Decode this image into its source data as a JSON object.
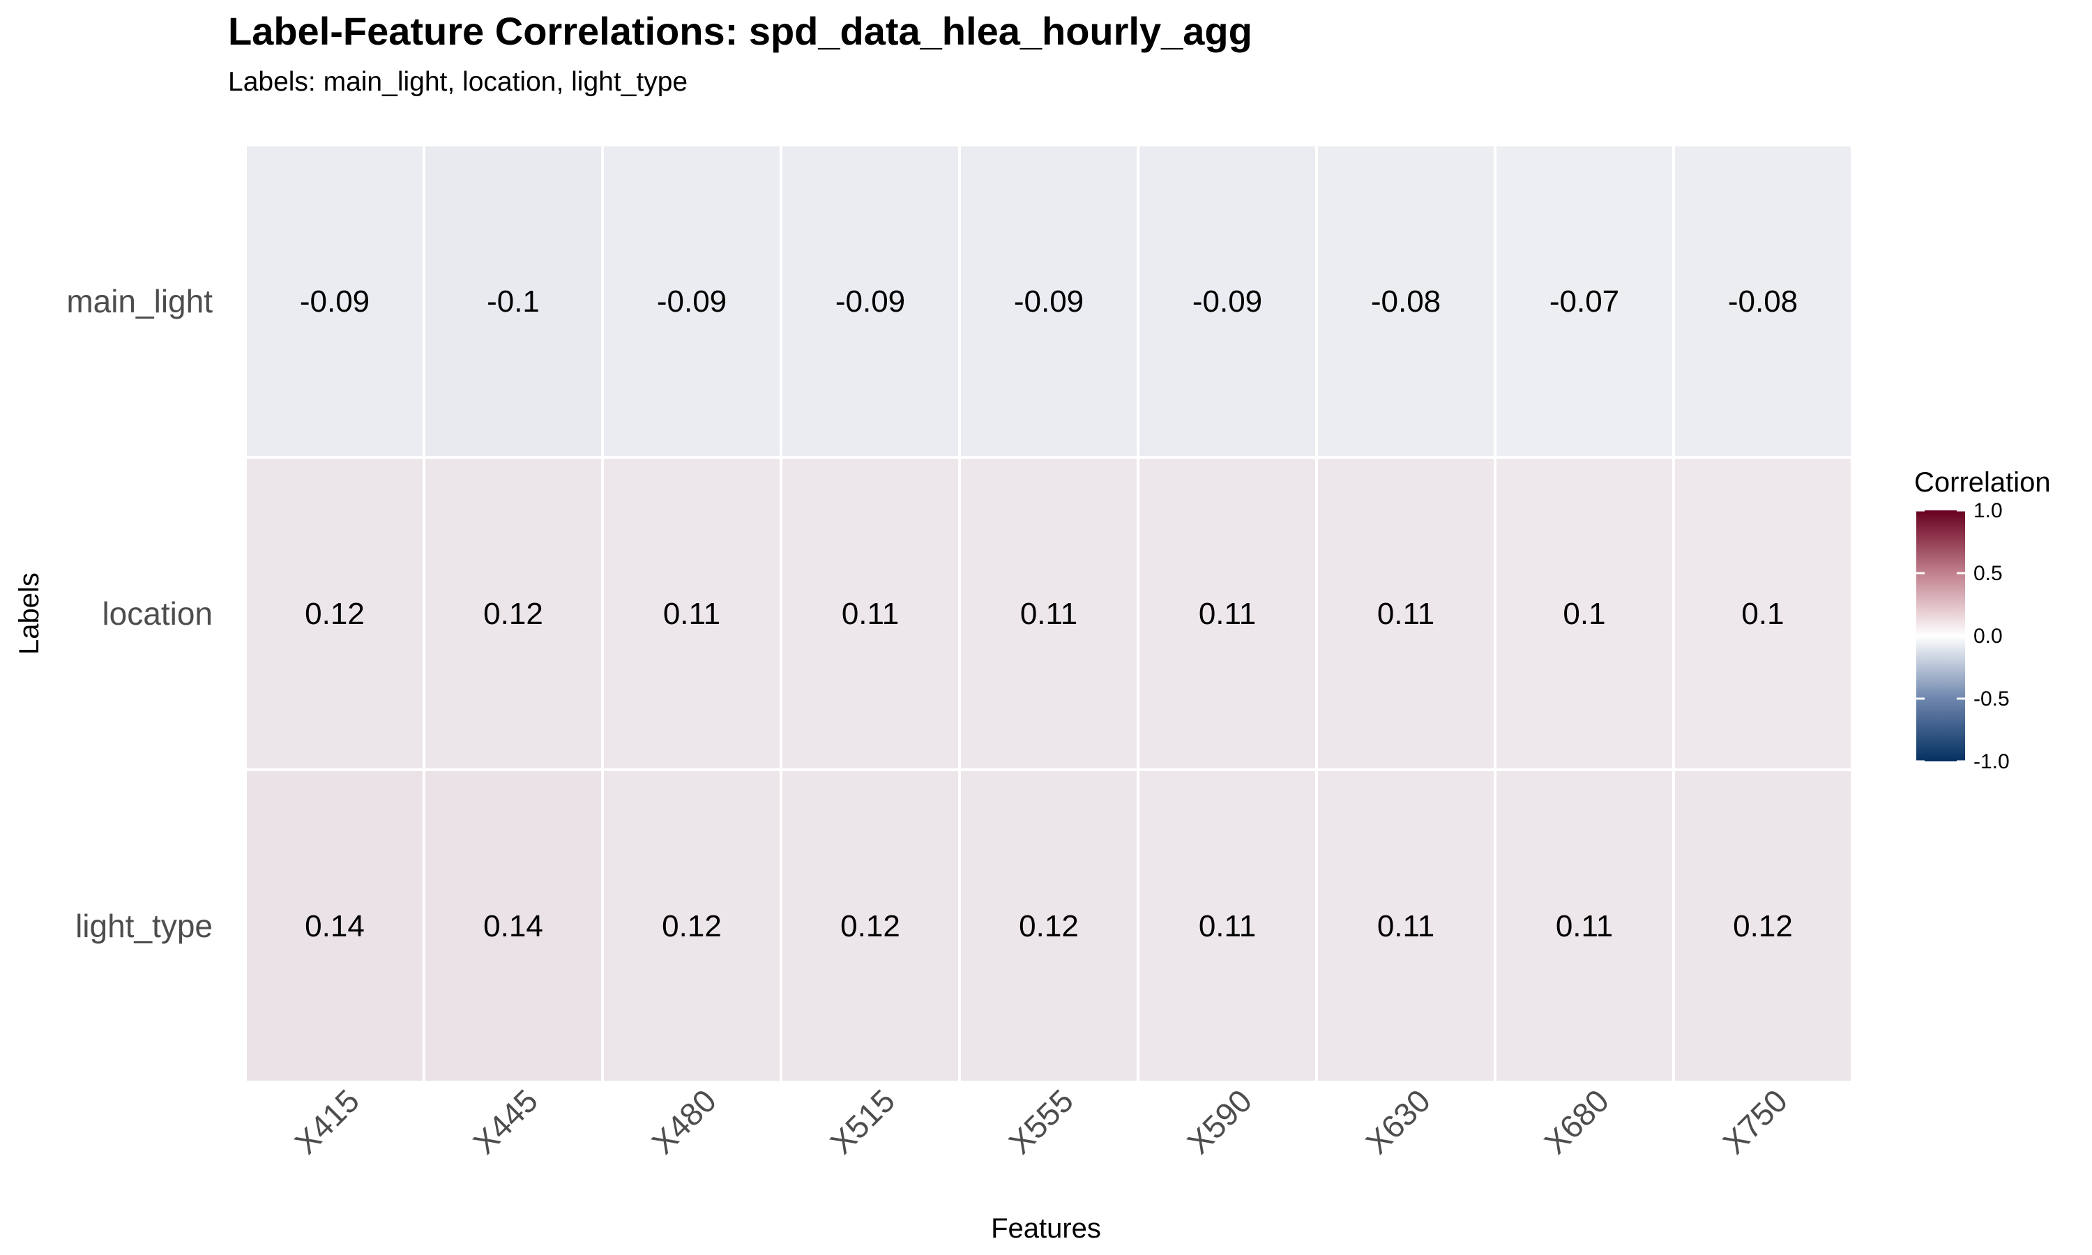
{
  "chart_data": {
    "type": "heatmap",
    "title": "Label-Feature Correlations: spd_data_hlea_hourly_agg",
    "subtitle": "Labels: main_light, location, light_type",
    "xlabel": "Features",
    "ylabel": "Labels",
    "x_categories": [
      "X415",
      "X445",
      "X480",
      "X515",
      "X555",
      "X590",
      "X630",
      "X680",
      "X750"
    ],
    "y_categories": [
      "main_light",
      "location",
      "light_type"
    ],
    "values": [
      [
        -0.09,
        -0.1,
        -0.09,
        -0.09,
        -0.09,
        -0.09,
        -0.08,
        -0.07,
        -0.08
      ],
      [
        0.12,
        0.12,
        0.11,
        0.11,
        0.11,
        0.11,
        0.11,
        0.1,
        0.1
      ],
      [
        0.14,
        0.14,
        0.12,
        0.12,
        0.12,
        0.11,
        0.11,
        0.11,
        0.12
      ]
    ],
    "value_labels": [
      [
        "-0.09",
        "-0.1",
        "-0.09",
        "-0.09",
        "-0.09",
        "-0.09",
        "-0.08",
        "-0.07",
        "-0.08"
      ],
      [
        "0.12",
        "0.12",
        "0.11",
        "0.11",
        "0.11",
        "0.11",
        "0.11",
        "0.1",
        "0.1"
      ],
      [
        "0.14",
        "0.14",
        "0.12",
        "0.12",
        "0.12",
        "0.11",
        "0.11",
        "0.11",
        "0.12"
      ]
    ],
    "legend": {
      "title": "Correlation",
      "range": [
        -1.0,
        1.0
      ],
      "ticks": [
        "1.0",
        "0.5",
        "0.0",
        "-0.5",
        "-1.0"
      ],
      "tick_values": [
        1.0,
        0.5,
        0.0,
        -0.5,
        -1.0
      ],
      "placement": "right"
    },
    "colors": {
      "low": "#053061",
      "mid": "#ffffff",
      "high": "#67001f"
    },
    "grid": false
  }
}
